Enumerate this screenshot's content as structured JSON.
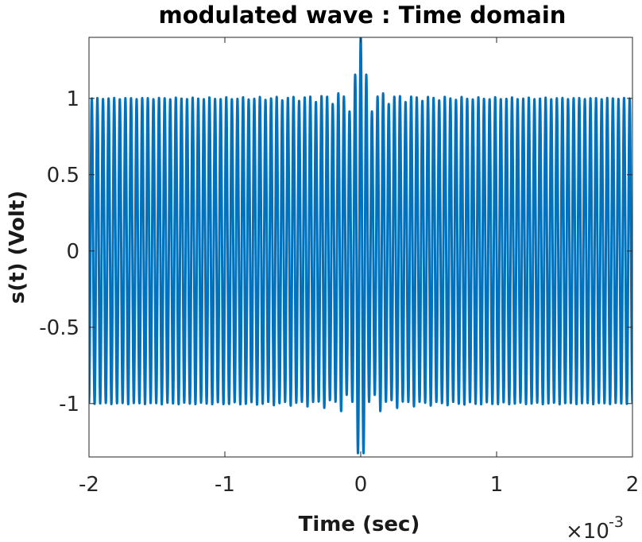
{
  "chart_data": {
    "type": "line",
    "title": "modulated wave : Time domain",
    "xlabel": "Time (sec)",
    "ylabel": "s(t)  (Volt)",
    "x_exponent_base": "×10",
    "x_exponent_power": "-3",
    "xlim": [
      -2,
      2
    ],
    "ylim": [
      -1.35,
      1.4
    ],
    "xticks": [
      -2,
      -1,
      0,
      1,
      2
    ],
    "xtick_labels": [
      "-2",
      "-1",
      "0",
      "1",
      "2"
    ],
    "yticks": [
      -1,
      -0.5,
      0,
      0.5,
      1
    ],
    "ytick_labels": [
      "-1",
      "-0.5",
      "0",
      "0.5",
      "1"
    ],
    "grid": false,
    "series": [
      {
        "color": "#0072BD",
        "shape": "sinusoid with unit envelope and a sinc-like burst peaking at about ±1.4 near x = 0",
        "amplitude": 1,
        "peak_amplitude": 1.4,
        "carrier_periods_over_xlim": 97
      }
    ]
  }
}
